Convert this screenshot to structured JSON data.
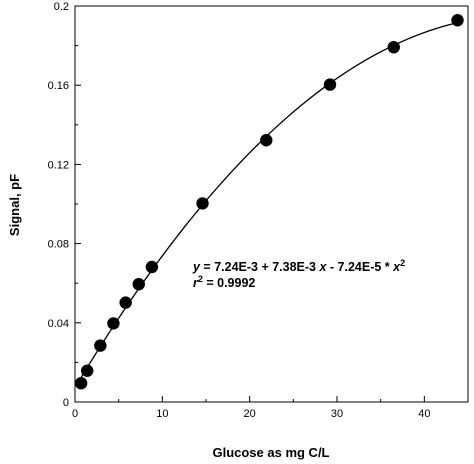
{
  "chart_data": {
    "type": "scatter",
    "title": "",
    "xlabel": "Glucose as mg C/L",
    "ylabel": "Signal, pF",
    "xlim": [
      0,
      45
    ],
    "ylim": [
      0,
      0.2
    ],
    "xticks": [
      "0",
      "10",
      "20",
      "30",
      "40"
    ],
    "yticks": [
      "0",
      "0.04",
      "0.08",
      "0.12",
      "0.16",
      "0.2"
    ],
    "grid": false,
    "points": {
      "x": [
        0.7,
        1.4,
        2.9,
        4.4,
        5.8,
        7.3,
        8.8,
        14.6,
        21.9,
        29.2,
        36.5,
        43.8
      ],
      "y": [
        0.0095,
        0.0158,
        0.0285,
        0.0397,
        0.0502,
        0.0595,
        0.0682,
        0.1003,
        0.1322,
        0.1603,
        0.1792,
        0.1928
      ]
    },
    "fit": {
      "intercept": 0.00724,
      "linear": 0.00738,
      "quadratic": -7.24e-05,
      "equation_lines": [
        {
          "y": "y",
          "eq": " = 7.24E-3 + 7.38E-3 ",
          "x": "x",
          "mid": " - 7.24E-5 * ",
          "x2": "x",
          "sup": "2"
        },
        {
          "r": "r",
          "sup": "2",
          "rest": " = 0.9992"
        }
      ]
    }
  }
}
